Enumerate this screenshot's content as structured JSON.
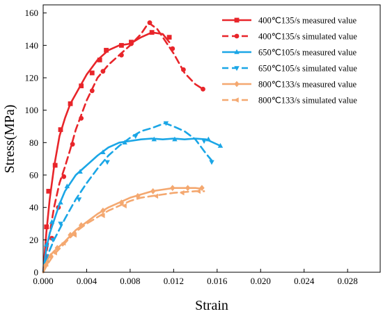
{
  "chart_data": {
    "type": "line",
    "xlabel": "Strain",
    "ylabel": "Stress(MPa)",
    "xlim": [
      0,
      0.031
    ],
    "ylim": [
      0,
      165
    ],
    "x_ticks": [
      "0.000",
      "0.004",
      "0.008",
      "0.012",
      "0.016",
      "0.020",
      "0.024",
      "0.028"
    ],
    "x_tick_values": [
      0,
      0.004,
      0.008,
      0.012,
      0.016,
      0.02,
      0.024,
      0.028
    ],
    "y_ticks": [
      "0",
      "20",
      "40",
      "60",
      "80",
      "100",
      "120",
      "140",
      "160"
    ],
    "y_tick_values": [
      0,
      20,
      40,
      60,
      80,
      100,
      120,
      140,
      160
    ],
    "grid": false,
    "legend_position": "top-right",
    "series": [
      {
        "name": "400℃135/s measured value",
        "color": "#e8252a",
        "dash": "solid",
        "marker": "square",
        "curve": [
          [
            0,
            0
          ],
          [
            0.0003,
            25
          ],
          [
            0.0006,
            45
          ],
          [
            0.001,
            65
          ],
          [
            0.0015,
            84
          ],
          [
            0.002,
            95
          ],
          [
            0.0025,
            104
          ],
          [
            0.003,
            110
          ],
          [
            0.0035,
            116
          ],
          [
            0.004,
            122
          ],
          [
            0.005,
            131
          ],
          [
            0.006,
            137
          ],
          [
            0.007,
            140
          ],
          [
            0.008,
            141
          ],
          [
            0.009,
            145
          ],
          [
            0.01,
            148
          ],
          [
            0.011,
            147
          ],
          [
            0.0116,
            142
          ]
        ],
        "markers": [
          [
            0.0003,
            28
          ],
          [
            0.0005,
            50
          ],
          [
            0.0011,
            66
          ],
          [
            0.0016,
            88
          ],
          [
            0.0025,
            104
          ],
          [
            0.0035,
            115
          ],
          [
            0.0045,
            123
          ],
          [
            0.0052,
            131
          ],
          [
            0.0058,
            137
          ],
          [
            0.0072,
            140
          ],
          [
            0.0081,
            142
          ],
          [
            0.01,
            148
          ],
          [
            0.0116,
            145
          ]
        ]
      },
      {
        "name": "400℃135/s simulated value",
        "color": "#e8252a",
        "dash": "dashed",
        "marker": "circle",
        "curve": [
          [
            0,
            0
          ],
          [
            0.0005,
            20
          ],
          [
            0.001,
            40
          ],
          [
            0.0015,
            55
          ],
          [
            0.002,
            65
          ],
          [
            0.0025,
            76
          ],
          [
            0.003,
            88
          ],
          [
            0.0035,
            97
          ],
          [
            0.004,
            106
          ],
          [
            0.005,
            120
          ],
          [
            0.006,
            128
          ],
          [
            0.007,
            134
          ],
          [
            0.008,
            140
          ],
          [
            0.009,
            147
          ],
          [
            0.0097,
            154
          ],
          [
            0.0105,
            150
          ],
          [
            0.0115,
            140
          ],
          [
            0.012,
            135
          ],
          [
            0.013,
            123
          ],
          [
            0.014,
            116
          ],
          [
            0.0147,
            113
          ]
        ],
        "markers": [
          [
            0.0002,
            7
          ],
          [
            0.0008,
            21
          ],
          [
            0.0014,
            40
          ],
          [
            0.0019,
            59
          ],
          [
            0.0027,
            79
          ],
          [
            0.0035,
            95
          ],
          [
            0.0045,
            112
          ],
          [
            0.0055,
            124
          ],
          [
            0.0072,
            134
          ],
          [
            0.0081,
            141
          ],
          [
            0.0098,
            154
          ],
          [
            0.0119,
            138
          ],
          [
            0.0129,
            125
          ],
          [
            0.0147,
            113
          ]
        ]
      },
      {
        "name": "650℃105/s measured value",
        "color": "#1aa6e6",
        "dash": "solid",
        "marker": "triangle-up",
        "curve": [
          [
            0,
            0
          ],
          [
            0.0003,
            15
          ],
          [
            0.0006,
            24
          ],
          [
            0.001,
            32
          ],
          [
            0.0015,
            42
          ],
          [
            0.002,
            50
          ],
          [
            0.003,
            60
          ],
          [
            0.004,
            66
          ],
          [
            0.005,
            72
          ],
          [
            0.006,
            77
          ],
          [
            0.007,
            80
          ],
          [
            0.008,
            81
          ],
          [
            0.009,
            82
          ],
          [
            0.01,
            82.5
          ],
          [
            0.011,
            82
          ],
          [
            0.012,
            82.5
          ],
          [
            0.013,
            82
          ],
          [
            0.014,
            82.5
          ],
          [
            0.015,
            82
          ],
          [
            0.0163,
            78
          ]
        ],
        "markers": [
          [
            0.0003,
            17
          ],
          [
            0.0008,
            31
          ],
          [
            0.0016,
            43
          ],
          [
            0.0022,
            53
          ],
          [
            0.0034,
            62
          ],
          [
            0.0055,
            74
          ],
          [
            0.0075,
            80
          ],
          [
            0.0102,
            82
          ],
          [
            0.0121,
            82
          ],
          [
            0.0152,
            82
          ],
          [
            0.0163,
            78
          ]
        ]
      },
      {
        "name": "650℃105/s simulated value",
        "color": "#1aa6e6",
        "dash": "dashed",
        "marker": "triangle-down",
        "curve": [
          [
            0,
            0
          ],
          [
            0.0005,
            12
          ],
          [
            0.001,
            20
          ],
          [
            0.002,
            33
          ],
          [
            0.003,
            45
          ],
          [
            0.004,
            55
          ],
          [
            0.005,
            64
          ],
          [
            0.006,
            72
          ],
          [
            0.007,
            78
          ],
          [
            0.008,
            83
          ],
          [
            0.009,
            87
          ],
          [
            0.01,
            89
          ],
          [
            0.0112,
            92
          ],
          [
            0.012,
            90
          ],
          [
            0.013,
            87
          ],
          [
            0.014,
            82
          ],
          [
            0.015,
            73
          ],
          [
            0.0155,
            69
          ]
        ],
        "markers": [
          [
            0.0003,
            6
          ],
          [
            0.0009,
            20
          ],
          [
            0.0016,
            30
          ],
          [
            0.0033,
            45
          ],
          [
            0.0059,
            68
          ],
          [
            0.0085,
            84
          ],
          [
            0.0113,
            92
          ],
          [
            0.0148,
            81
          ],
          [
            0.0155,
            68
          ]
        ]
      },
      {
        "name": "800℃133/s measured value",
        "color": "#f4a870",
        "dash": "solid",
        "marker": "diamond",
        "curve": [
          [
            0,
            0
          ],
          [
            0.0003,
            6
          ],
          [
            0.0006,
            10
          ],
          [
            0.001,
            13
          ],
          [
            0.002,
            19
          ],
          [
            0.003,
            26
          ],
          [
            0.004,
            31
          ],
          [
            0.005,
            36
          ],
          [
            0.006,
            40
          ],
          [
            0.007,
            43
          ],
          [
            0.008,
            46
          ],
          [
            0.009,
            48
          ],
          [
            0.01,
            50
          ],
          [
            0.011,
            51
          ],
          [
            0.012,
            52
          ],
          [
            0.013,
            52
          ],
          [
            0.014,
            52
          ],
          [
            0.0146,
            51.5
          ]
        ],
        "markers": [
          [
            0.0002,
            4
          ],
          [
            0.0007,
            10
          ],
          [
            0.0013,
            15
          ],
          [
            0.0025,
            23
          ],
          [
            0.0035,
            29
          ],
          [
            0.0055,
            38
          ],
          [
            0.0072,
            43
          ],
          [
            0.0087,
            47
          ],
          [
            0.0101,
            50
          ],
          [
            0.0119,
            52
          ],
          [
            0.0133,
            52
          ],
          [
            0.0146,
            52
          ]
        ]
      },
      {
        "name": "800℃133/s simulated value",
        "color": "#f4a870",
        "dash": "dashed",
        "marker": "triangle-left",
        "curve": [
          [
            0,
            0
          ],
          [
            0.0004,
            5
          ],
          [
            0.001,
            11
          ],
          [
            0.002,
            18
          ],
          [
            0.003,
            25
          ],
          [
            0.004,
            30
          ],
          [
            0.005,
            34
          ],
          [
            0.006,
            38
          ],
          [
            0.007,
            41
          ],
          [
            0.008,
            44
          ],
          [
            0.009,
            46
          ],
          [
            0.01,
            47
          ],
          [
            0.011,
            48
          ],
          [
            0.012,
            49
          ],
          [
            0.013,
            49.5
          ],
          [
            0.014,
            50
          ],
          [
            0.0148,
            50
          ]
        ],
        "markers": [
          [
            0.0003,
            5
          ],
          [
            0.0011,
            12
          ],
          [
            0.0019,
            18
          ],
          [
            0.0029,
            23
          ],
          [
            0.0055,
            35
          ],
          [
            0.0075,
            41
          ],
          [
            0.0104,
            47
          ],
          [
            0.0128,
            49
          ],
          [
            0.0143,
            50
          ]
        ]
      }
    ]
  }
}
